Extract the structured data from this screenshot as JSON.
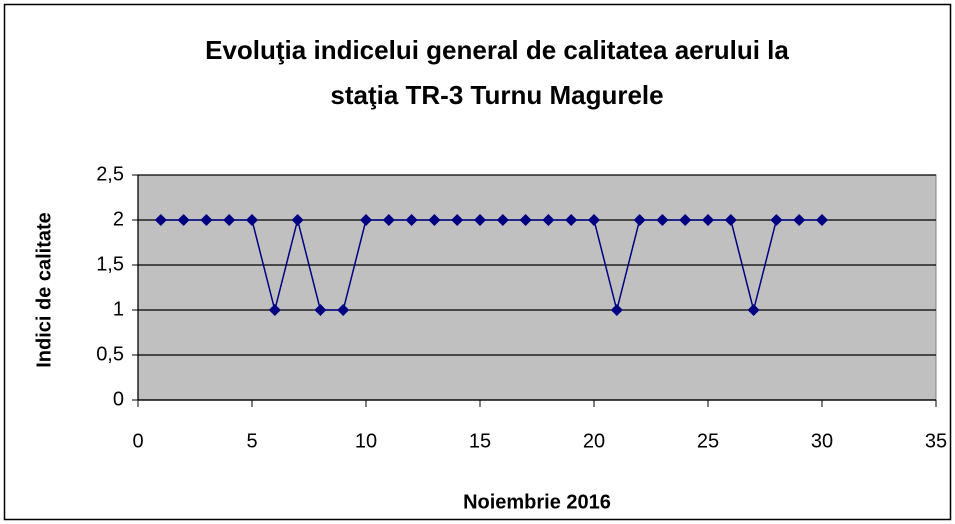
{
  "chart_data": {
    "type": "line",
    "title": [
      "Evoluţia indicelui general de calitatea aerului la",
      "staţia TR-3 Turnu Magurele"
    ],
    "x_label": "Noiembrie 2016",
    "y_label": "Indici de calitate",
    "x": [
      1,
      2,
      3,
      4,
      5,
      6,
      7,
      8,
      9,
      10,
      11,
      12,
      13,
      14,
      15,
      16,
      17,
      18,
      19,
      20,
      21,
      22,
      23,
      24,
      25,
      26,
      27,
      28,
      29,
      30
    ],
    "values": [
      2,
      2,
      2,
      2,
      2,
      1,
      2,
      1,
      1,
      2,
      2,
      2,
      2,
      2,
      2,
      2,
      2,
      2,
      2,
      2,
      1,
      2,
      2,
      2,
      2,
      2,
      1,
      2,
      2,
      2
    ],
    "color": "#000080",
    "plot_background": "#c0c0c0",
    "xlim": [
      0,
      35
    ],
    "xticks": [
      0,
      5,
      10,
      15,
      20,
      25,
      30,
      35
    ],
    "ylim": [
      0,
      2.5
    ],
    "yticks": [
      0,
      {
        "value": 0.5,
        "label": "0,5"
      },
      1,
      {
        "value": 1.5,
        "label": "1,5"
      },
      2,
      {
        "value": 2.5,
        "label": "2,5"
      }
    ],
    "grid": true
  }
}
